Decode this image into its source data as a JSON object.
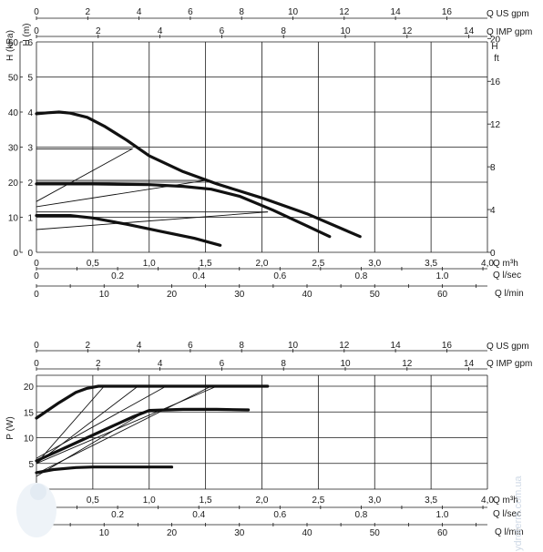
{
  "chart_data": [
    {
      "type": "line",
      "title": "",
      "x": {
        "label": "Q m³h",
        "range": [
          0,
          4.0
        ],
        "ticks": [
          "0",
          "0,5",
          "1,0",
          "1,5",
          "2,0",
          "2,5",
          "3,0",
          "3,5",
          "4,0"
        ]
      },
      "y_left_kpa": {
        "label": "H (kPa)",
        "ticks": [
          "0",
          "10",
          "20",
          "30",
          "40",
          "50",
          "60"
        ]
      },
      "y_left_m": {
        "label": "H (m)",
        "range": [
          0,
          6.0
        ],
        "ticks": [
          "0",
          "1",
          "2",
          "3",
          "4",
          "5",
          "6"
        ]
      },
      "y_right_ft": {
        "label_top": "H",
        "label_bottom": "ft",
        "ticks": [
          "0",
          "4",
          "8",
          "12",
          "16",
          "20"
        ]
      },
      "top_axes": [
        {
          "label": "Q US gpm",
          "ticks": [
            "0",
            "2",
            "4",
            "6",
            "8",
            "10",
            "12",
            "14",
            "16"
          ]
        },
        {
          "label": "Q IMP gpm",
          "ticks": [
            "0",
            "2",
            "4",
            "6",
            "8",
            "10",
            "12",
            "14"
          ]
        }
      ],
      "bottom_axes": [
        {
          "label": "Q l/sec",
          "ticks": [
            "0",
            "0.2",
            "0.4",
            "0.6",
            "0.8",
            "1.0"
          ]
        },
        {
          "label": "Q l/min",
          "ticks": [
            "0",
            "10",
            "20",
            "30",
            "40",
            "50",
            "60"
          ]
        }
      ],
      "grid": true,
      "series": [
        {
          "style": "thick",
          "x": [
            0,
            0.1,
            0.2,
            0.3,
            0.45,
            0.6,
            0.8,
            1.0,
            1.3,
            1.6,
            2.0,
            2.4,
            2.87
          ],
          "y": [
            3.95,
            3.98,
            4.0,
            3.97,
            3.85,
            3.6,
            3.2,
            2.75,
            2.3,
            1.95,
            1.55,
            1.1,
            0.45
          ]
        },
        {
          "style": "thick",
          "x": [
            0,
            0.5,
            1.0,
            1.3,
            1.55,
            1.8,
            2.1,
            2.4,
            2.6
          ],
          "y": [
            1.95,
            1.95,
            1.93,
            1.88,
            1.8,
            1.6,
            1.2,
            0.75,
            0.45
          ]
        },
        {
          "style": "thick",
          "x": [
            0,
            0.3,
            0.5,
            0.8,
            1.1,
            1.4,
            1.63
          ],
          "y": [
            1.05,
            1.05,
            0.98,
            0.8,
            0.6,
            0.4,
            0.2
          ]
        },
        {
          "style": "thin",
          "x": [
            0,
            0.85
          ],
          "y": [
            2.95,
            2.95
          ]
        },
        {
          "style": "thin",
          "x": [
            0,
            1.5
          ],
          "y": [
            2.05,
            2.05
          ]
        },
        {
          "style": "thin",
          "x": [
            0,
            2.05
          ],
          "y": [
            1.15,
            1.15
          ]
        },
        {
          "style": "thin",
          "x": [
            0,
            0.85
          ],
          "y": [
            1.45,
            2.95
          ]
        },
        {
          "style": "thin",
          "x": [
            0,
            1.5
          ],
          "y": [
            1.3,
            2.05
          ]
        },
        {
          "style": "thin",
          "x": [
            0,
            2.05
          ],
          "y": [
            0.65,
            1.15
          ]
        }
      ]
    },
    {
      "type": "line",
      "title": "",
      "x": {
        "label": "Q m³h",
        "range": [
          0,
          4.0
        ],
        "ticks": [
          "0",
          "0,5",
          "1,0",
          "1,5",
          "2,0",
          "2,5",
          "3,0",
          "3,5",
          "4,0"
        ]
      },
      "y": {
        "label": "P (W)",
        "range": [
          0,
          20
        ],
        "ticks": [
          "0",
          "5",
          "10",
          "15",
          "20"
        ]
      },
      "top_axes": [
        {
          "label": "Q US gpm",
          "ticks": [
            "0",
            "2",
            "4",
            "6",
            "8",
            "10",
            "12",
            "14",
            "16"
          ]
        },
        {
          "label": "Q IMP gpm",
          "ticks": [
            "0",
            "2",
            "4",
            "6",
            "8",
            "10",
            "12",
            "14"
          ]
        }
      ],
      "bottom_axes": [
        {
          "label": "Q l/sec",
          "ticks": [
            "0",
            "0.2",
            "0.4",
            "0.6",
            "0.8",
            "1.0"
          ]
        },
        {
          "label": "Q l/min",
          "ticks": [
            "0",
            "10",
            "20",
            "30",
            "40",
            "50",
            "60"
          ]
        }
      ],
      "grid": true,
      "series": [
        {
          "style": "thick",
          "x": [
            0,
            0.2,
            0.35,
            0.45,
            0.55,
            0.8,
            1.2,
            1.6,
            2.05
          ],
          "y": [
            13.8,
            16.8,
            18.8,
            19.6,
            20.0,
            20.0,
            20.0,
            20.0,
            20.0
          ]
        },
        {
          "style": "thick",
          "x": [
            0,
            0.3,
            0.6,
            0.85,
            1.0,
            1.3,
            1.6,
            1.88
          ],
          "y": [
            5.5,
            8.5,
            11.5,
            14.0,
            15.3,
            15.5,
            15.5,
            15.4
          ]
        },
        {
          "style": "thick",
          "x": [
            0,
            0.15,
            0.35,
            0.5,
            0.8,
            1.2
          ],
          "y": [
            3.2,
            3.8,
            4.2,
            4.3,
            4.3,
            4.3
          ]
        },
        {
          "style": "thin",
          "x": [
            0,
            0.6
          ],
          "y": [
            5.0,
            20.0
          ]
        },
        {
          "style": "thin",
          "x": [
            0,
            0.9
          ],
          "y": [
            5.0,
            20.0
          ]
        },
        {
          "style": "thin",
          "x": [
            0,
            1.6
          ],
          "y": [
            5.0,
            20.0
          ]
        },
        {
          "style": "thin",
          "x": [
            0,
            1.15
          ],
          "y": [
            6.0,
            20.0
          ]
        },
        {
          "style": "thin",
          "x": [
            0,
            1.55
          ],
          "y": [
            3.0,
            20.0
          ]
        },
        {
          "style": "thin",
          "x": [
            0,
            1.0
          ],
          "y": [
            2.5,
            15.5
          ]
        }
      ]
    }
  ],
  "watermark": "ydroterm.com.ua"
}
